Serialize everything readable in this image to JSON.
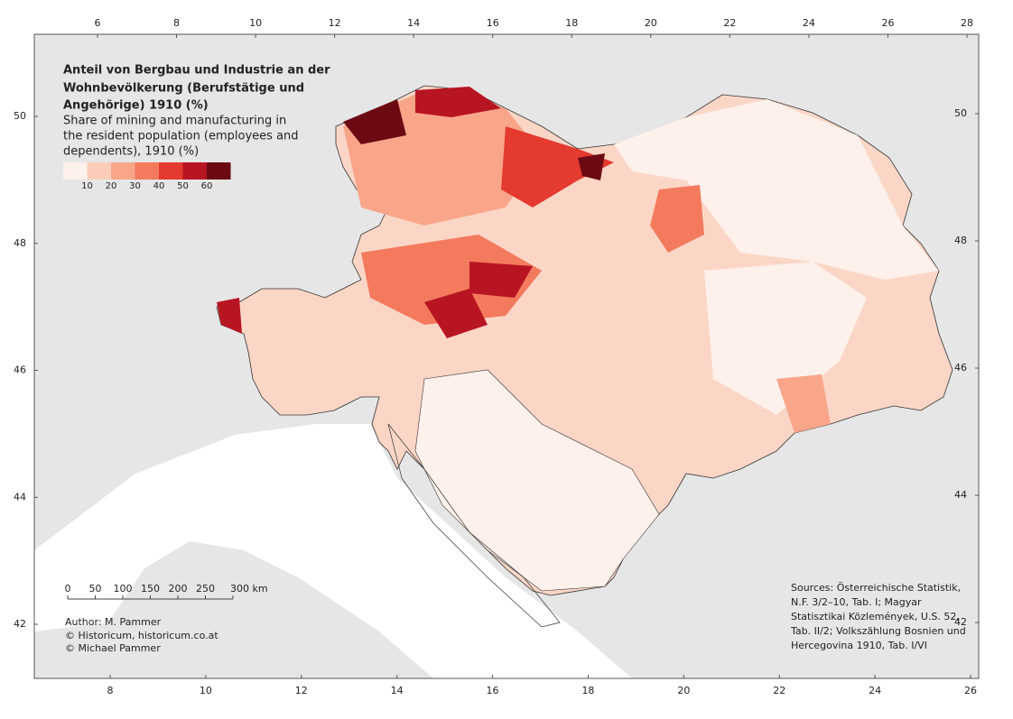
{
  "map": {
    "title_de": [
      "Anteil von Bergbau und Industrie an der",
      "Wohnbevölkerung (Berufstätige und",
      "Angehörige) 1910 (%)"
    ],
    "title_en": [
      "Share of mining and manufacturing in",
      "the resident population (employees and",
      "dependents), 1910 (%)"
    ],
    "legend": {
      "colors": [
        "#fef0ea",
        "#fbcdb8",
        "#f8a58a",
        "#f47a5e",
        "#e43a2f",
        "#b81523",
        "#6b0a13"
      ],
      "breaks": [
        10,
        20,
        30,
        40,
        50,
        60
      ]
    },
    "top_ticks": [
      6,
      8,
      10,
      12,
      14,
      16,
      18,
      20,
      22,
      24,
      26,
      28
    ],
    "bottom_ticks": [
      8,
      10,
      12,
      14,
      16,
      18,
      20,
      22,
      24,
      26
    ],
    "left_ticks": [
      42,
      44,
      46,
      48,
      50
    ],
    "right_ticks": [
      42,
      44,
      46,
      48,
      50
    ],
    "scale_bar": [
      0,
      50,
      100,
      150,
      200,
      250,
      {
        "value": 300,
        "label": "300 km"
      }
    ],
    "author": [
      "Author: M. Pammer",
      "© Historicum, historicum.co.at",
      "© Michael Pammer"
    ],
    "sources": [
      "Sources: Österreichische Statistik,",
      "N.F. 3/2–10, Tab. I; Magyar",
      "Statisztikai Közlemények, U.S. 52,",
      "Tab. II/2; Volkszählung Bosnien und",
      "Hercegovina 1910, Tab. I/VI"
    ]
  }
}
